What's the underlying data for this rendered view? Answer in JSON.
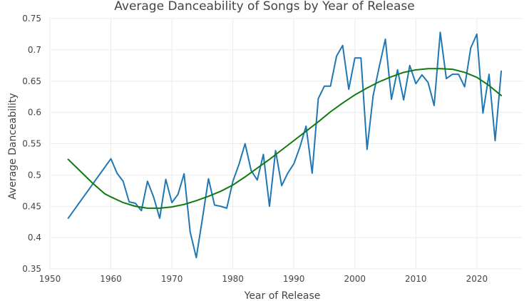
{
  "chart_data": {
    "type": "line",
    "title": "Average Danceability of Songs by Year of Release",
    "xlabel": "Year of Release",
    "ylabel": "Average Danceability",
    "xlim": [
      1950,
      2027.5
    ],
    "ylim": [
      0.35,
      0.75
    ],
    "xticks": [
      1950,
      1960,
      1970,
      1980,
      1990,
      2000,
      2010,
      2020
    ],
    "yticks": [
      0.35,
      0.4,
      0.45,
      0.5,
      0.55,
      0.6,
      0.65,
      0.7,
      0.75
    ],
    "xtick_labels": [
      "1950",
      "1960",
      "1970",
      "1980",
      "1990",
      "2000",
      "2010",
      "2020"
    ],
    "ytick_labels": [
      "0.35",
      "0.4",
      "0.45",
      "0.5",
      "0.55",
      "0.6",
      "0.65",
      "0.7",
      "0.75"
    ],
    "grid": true,
    "series": [
      {
        "color": "#1f77b4",
        "style": "raw",
        "x": [
          1953,
          1960,
          1961,
          1962,
          1963,
          1964,
          1965,
          1966,
          1967,
          1968,
          1969,
          1970,
          1971,
          1972,
          1973,
          1974,
          1975,
          1976,
          1977,
          1978,
          1979,
          1980,
          1981,
          1982,
          1983,
          1984,
          1985,
          1986,
          1987,
          1988,
          1989,
          1990,
          1991,
          1992,
          1993,
          1994,
          1995,
          1996,
          1997,
          1998,
          1999,
          2000,
          2001,
          2002,
          2003,
          2004,
          2005,
          2006,
          2007,
          2008,
          2009,
          2010,
          2011,
          2012,
          2013,
          2014,
          2015,
          2016,
          2017,
          2018,
          2019,
          2020,
          2021,
          2022,
          2023,
          2024
        ],
        "y": [
          0.431,
          0.526,
          0.503,
          0.49,
          0.457,
          0.455,
          0.443,
          0.49,
          0.465,
          0.431,
          0.493,
          0.456,
          0.469,
          0.502,
          0.409,
          0.368,
          0.43,
          0.494,
          0.452,
          0.45,
          0.447,
          0.49,
          0.517,
          0.55,
          0.507,
          0.492,
          0.533,
          0.45,
          0.539,
          0.483,
          0.503,
          0.518,
          0.545,
          0.578,
          0.503,
          0.622,
          0.642,
          0.642,
          0.69,
          0.707,
          0.637,
          0.687,
          0.687,
          0.541,
          0.627,
          0.673,
          0.717,
          0.621,
          0.668,
          0.62,
          0.675,
          0.646,
          0.66,
          0.648,
          0.611,
          0.728,
          0.654,
          0.661,
          0.661,
          0.641,
          0.703,
          0.725,
          0.599,
          0.661,
          0.555,
          0.666
        ]
      },
      {
        "color": "#107a10",
        "style": "smoothed",
        "x": [
          1953,
          1955,
          1957,
          1959,
          1960,
          1962,
          1964,
          1966,
          1968,
          1970,
          1972,
          1974,
          1976,
          1978,
          1980,
          1982,
          1984,
          1986,
          1988,
          1990,
          1992,
          1994,
          1996,
          1998,
          2000,
          2002,
          2004,
          2006,
          2008,
          2010,
          2012,
          2014,
          2016,
          2018,
          2020,
          2022,
          2024
        ],
        "y": [
          0.525,
          0.506,
          0.487,
          0.47,
          0.465,
          0.456,
          0.45,
          0.447,
          0.447,
          0.449,
          0.453,
          0.459,
          0.466,
          0.474,
          0.484,
          0.497,
          0.511,
          0.525,
          0.54,
          0.555,
          0.57,
          0.585,
          0.601,
          0.615,
          0.628,
          0.639,
          0.649,
          0.657,
          0.664,
          0.668,
          0.67,
          0.67,
          0.669,
          0.664,
          0.656,
          0.643,
          0.627
        ]
      }
    ]
  }
}
